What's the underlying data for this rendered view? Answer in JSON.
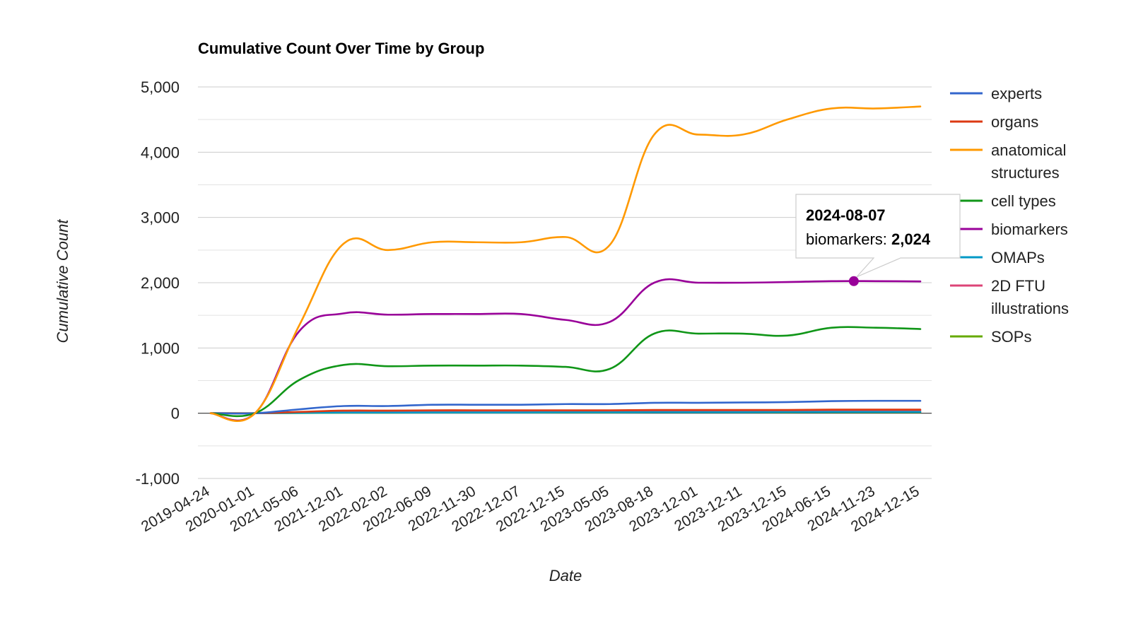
{
  "chart_data": {
    "type": "line",
    "title": "Cumulative Count Over Time by Group",
    "xlabel": "Date",
    "ylabel": "Cumulative Count",
    "ylim": [
      -1000,
      5000
    ],
    "yticks": [
      5000,
      4000,
      3000,
      2000,
      1000,
      0,
      -1000
    ],
    "ytick_labels": [
      "5,000",
      "4,000",
      "3,000",
      "2,000",
      "1,000",
      "0",
      "-1,000"
    ],
    "grid": true,
    "legend_position": "right",
    "x": [
      "2019-04-24",
      "2020-01-01",
      "2021-05-06",
      "2021-12-01",
      "2022-02-02",
      "2022-06-09",
      "2022-11-30",
      "2022-12-07",
      "2022-12-15",
      "2023-05-05",
      "2023-08-18",
      "2023-12-01",
      "2023-12-11",
      "2023-12-15",
      "2024-06-15",
      "2024-11-23",
      "2024-12-15"
    ],
    "series": [
      {
        "name": "experts",
        "color": "#3366cc",
        "values": [
          0,
          0,
          60,
          110,
          110,
          130,
          130,
          130,
          140,
          140,
          160,
          160,
          165,
          170,
          185,
          190,
          190
        ]
      },
      {
        "name": "organs",
        "color": "#dc3912",
        "values": [
          0,
          0,
          20,
          40,
          40,
          45,
          45,
          45,
          45,
          45,
          50,
          50,
          50,
          50,
          55,
          55,
          55
        ]
      },
      {
        "name": "anatomical structures",
        "color": "#ff9900",
        "values": [
          0,
          0,
          1350,
          2600,
          2500,
          2620,
          2620,
          2620,
          2700,
          2580,
          4270,
          4270,
          4270,
          4500,
          4670,
          4670,
          4700
        ]
      },
      {
        "name": "cell types",
        "color": "#109618",
        "values": [
          0,
          0,
          510,
          740,
          720,
          730,
          730,
          730,
          710,
          680,
          1220,
          1220,
          1220,
          1190,
          1310,
          1310,
          1290
        ]
      },
      {
        "name": "biomarkers",
        "color": "#990099",
        "values": [
          0,
          0,
          1260,
          1530,
          1510,
          1520,
          1520,
          1520,
          1430,
          1400,
          2000,
          2000,
          2000,
          2010,
          2024,
          2024,
          2020
        ]
      },
      {
        "name": "OMAPs",
        "color": "#0099c6",
        "values": [
          0,
          0,
          5,
          10,
          10,
          12,
          12,
          12,
          14,
          14,
          16,
          16,
          16,
          18,
          20,
          20,
          20
        ]
      },
      {
        "name": "2D FTU illustrations",
        "color": "#dd4477",
        "values": [
          0,
          0,
          15,
          25,
          25,
          28,
          28,
          28,
          30,
          30,
          35,
          35,
          35,
          38,
          40,
          40,
          40
        ]
      },
      {
        "name": "SOPs",
        "color": "#66aa00",
        "values": [
          0,
          0,
          3,
          8,
          8,
          10,
          10,
          10,
          12,
          12,
          14,
          14,
          14,
          15,
          16,
          16,
          16
        ]
      }
    ],
    "tooltip": {
      "date": "2024-08-07",
      "series": "biomarkers",
      "label": "biomarkers: ",
      "value_text": "2,024",
      "value": 2024
    }
  }
}
